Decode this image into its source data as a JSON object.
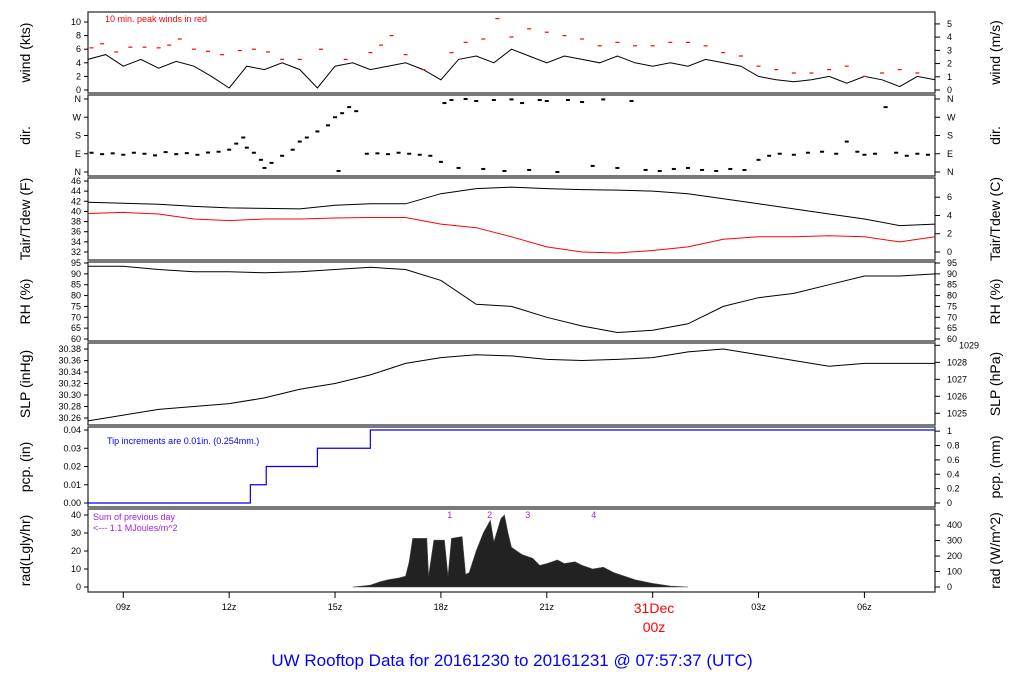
{
  "title": "UW Rooftop Data for 20161230  to  20161231 @ 07:57:37  (UTC)",
  "colors": {
    "black": "#000000",
    "red": "#ff0000",
    "blue": "#0000ff",
    "purple": "#a020f0",
    "title": "#0000ff"
  },
  "chart_data": {
    "type": "line",
    "x_unit": "hours since 2016-12-30 00z",
    "xlim": [
      8,
      32
    ],
    "x_ticks": [
      {
        "h": 9,
        "label": "09z"
      },
      {
        "h": 12,
        "label": "12z"
      },
      {
        "h": 15,
        "label": "15z"
      },
      {
        "h": 18,
        "label": "18z"
      },
      {
        "h": 21,
        "label": "21z"
      },
      {
        "h": 24,
        "label": ""
      },
      {
        "h": 27,
        "label": "03z"
      },
      {
        "h": 30,
        "label": "06z"
      }
    ],
    "date_marker": {
      "date": "31Dec",
      "hour": "00z"
    },
    "panels": {
      "wind": {
        "ylabel": "wind (kts)",
        "ylabel_right": "wind (m/s)",
        "ticks": [
          "0",
          "2",
          "4",
          "6",
          "8",
          "10"
        ],
        "ticks_right": [
          "0",
          "1",
          "2",
          "3",
          "4",
          "5"
        ],
        "annotation": "10 min. peak winds in red",
        "x_start": 8,
        "x_step": 0.5,
        "values": [
          4.5,
          5.2,
          3.5,
          4.5,
          3.2,
          4.2,
          3.5,
          2,
          0.3,
          3.5,
          3,
          4,
          3,
          0.3,
          3.5,
          4,
          3,
          3.5,
          4,
          3,
          1.5,
          4.5,
          5,
          4,
          6,
          5,
          4,
          5,
          4.5,
          4,
          5,
          4,
          3.5,
          4,
          3.5,
          4.5,
          4,
          3.5,
          2,
          1.5,
          1.2,
          1.5,
          2,
          1,
          2,
          1.5,
          0.5,
          2,
          1.5
        ],
        "peaks": [
          [
            8.1,
            6.2
          ],
          [
            8.4,
            6.8
          ],
          [
            8.8,
            5.6
          ],
          [
            9.2,
            6.3
          ],
          [
            9.6,
            6.3
          ],
          [
            10,
            6.2
          ],
          [
            10.3,
            6.6
          ],
          [
            10.6,
            7.5
          ],
          [
            11,
            6
          ],
          [
            11.4,
            5.7
          ],
          [
            11.8,
            5.2
          ],
          [
            12.3,
            5.8
          ],
          [
            12.7,
            6
          ],
          [
            13.1,
            5.6
          ],
          [
            13.5,
            4.5
          ],
          [
            14,
            4.5
          ],
          [
            14.6,
            6
          ],
          [
            15.3,
            4.5
          ],
          [
            16,
            5.5
          ],
          [
            16.3,
            6.6
          ],
          [
            16.6,
            8
          ],
          [
            17,
            5.2
          ],
          [
            17.5,
            3
          ],
          [
            18.3,
            5.5
          ],
          [
            18.7,
            7
          ],
          [
            19.2,
            7.5
          ],
          [
            19.6,
            10.5
          ],
          [
            20,
            7.8
          ],
          [
            20.5,
            9
          ],
          [
            21,
            8.5
          ],
          [
            21.5,
            8
          ],
          [
            22,
            7.5
          ],
          [
            22.5,
            6.5
          ],
          [
            23,
            7
          ],
          [
            23.5,
            6.5
          ],
          [
            24,
            6.5
          ],
          [
            24.5,
            7
          ],
          [
            25,
            7
          ],
          [
            25.5,
            6.5
          ],
          [
            26,
            5.5
          ],
          [
            26.5,
            5
          ],
          [
            27,
            3.5
          ],
          [
            27.5,
            3
          ],
          [
            28,
            2.5
          ],
          [
            28.5,
            2.5
          ],
          [
            29,
            3
          ],
          [
            29.5,
            3.5
          ],
          [
            30,
            2
          ],
          [
            30.5,
            2.5
          ],
          [
            31,
            3
          ],
          [
            31.5,
            2.5
          ]
        ]
      },
      "dir": {
        "ylabel": "dir.",
        "ylabel_right": "dir.",
        "ticks": [
          "N",
          "E",
          "S",
          "W",
          "N"
        ],
        "points": [
          [
            8.1,
            95
          ],
          [
            8.4,
            88
          ],
          [
            8.7,
            92
          ],
          [
            9,
            85
          ],
          [
            9.3,
            95
          ],
          [
            9.6,
            90
          ],
          [
            9.9,
            82
          ],
          [
            10.2,
            98
          ],
          [
            10.5,
            88
          ],
          [
            10.8,
            93
          ],
          [
            11.1,
            85
          ],
          [
            11.4,
            96
          ],
          [
            11.7,
            100
          ],
          [
            12,
            110
          ],
          [
            12.2,
            140
          ],
          [
            12.4,
            170
          ],
          [
            12.5,
            120
          ],
          [
            12.7,
            95
          ],
          [
            12.9,
            60
          ],
          [
            13.0,
            20
          ],
          [
            13.2,
            45
          ],
          [
            13.5,
            80
          ],
          [
            13.8,
            110
          ],
          [
            14.0,
            150
          ],
          [
            14.2,
            170
          ],
          [
            14.5,
            200
          ],
          [
            14.8,
            230
          ],
          [
            15.0,
            270
          ],
          [
            15.2,
            290
          ],
          [
            15.4,
            320
          ],
          [
            15.6,
            300
          ],
          [
            15.1,
            5
          ],
          [
            15.9,
            90
          ],
          [
            16.2,
            92
          ],
          [
            16.5,
            88
          ],
          [
            16.8,
            95
          ],
          [
            17.1,
            90
          ],
          [
            17.4,
            85
          ],
          [
            17.7,
            80
          ],
          [
            18,
            50
          ],
          [
            18.1,
            340
          ],
          [
            18.3,
            355
          ],
          [
            18.5,
            20
          ],
          [
            18.7,
            360
          ],
          [
            19,
            350
          ],
          [
            19.2,
            15
          ],
          [
            19.5,
            355
          ],
          [
            19.8,
            5
          ],
          [
            20,
            358
          ],
          [
            20.3,
            340
          ],
          [
            20.5,
            10
          ],
          [
            20.8,
            355
          ],
          [
            21,
            350
          ],
          [
            21.3,
            0
          ],
          [
            21.6,
            355
          ],
          [
            22,
            345
          ],
          [
            22.3,
            30
          ],
          [
            22.6,
            358
          ],
          [
            23,
            20
          ],
          [
            23.4,
            350
          ],
          [
            23.8,
            10
          ],
          [
            24.2,
            5
          ],
          [
            24.6,
            15
          ],
          [
            25,
            20
          ],
          [
            25.4,
            10
          ],
          [
            25.8,
            5
          ],
          [
            26.2,
            15
          ],
          [
            26.6,
            10
          ],
          [
            27,
            60
          ],
          [
            27.3,
            80
          ],
          [
            27.6,
            90
          ],
          [
            28,
            85
          ],
          [
            28.4,
            95
          ],
          [
            28.8,
            100
          ],
          [
            29.2,
            90
          ],
          [
            29.5,
            150
          ],
          [
            29.8,
            100
          ],
          [
            30,
            85
          ],
          [
            30.3,
            90
          ],
          [
            30.6,
            320
          ],
          [
            30.9,
            95
          ],
          [
            31.2,
            80
          ],
          [
            31.5,
            90
          ],
          [
            31.8,
            85
          ]
        ]
      },
      "temp": {
        "ylabel": "Tair/Tdew (F)",
        "ylabel_right": "Tair/Tdew (C)",
        "ticks": [
          "32",
          "34",
          "36",
          "38",
          "40",
          "42",
          "44",
          "46"
        ],
        "ticks_right": [
          "0",
          "2",
          "4",
          "6"
        ],
        "x_start": 8,
        "x_step": 1,
        "tair": [
          41.8,
          41.6,
          41.4,
          41,
          40.7,
          40.6,
          40.5,
          41.2,
          41.5,
          41.5,
          43.5,
          44.5,
          44.8,
          44.5,
          44.3,
          44.2,
          44,
          43.5,
          42.5,
          41.5,
          40.5,
          39.5,
          38.5,
          37.2,
          37.5
        ],
        "tdew": [
          39.6,
          39.8,
          39.5,
          38.5,
          38.2,
          38.5,
          38.5,
          38.7,
          38.8,
          38.8,
          37.5,
          36.8,
          35,
          33,
          32,
          31.8,
          32.3,
          33,
          34.5,
          35,
          35,
          35.2,
          35,
          34,
          35
        ]
      },
      "rh": {
        "ylabel": "RH (%)",
        "ylabel_right": "RH (%)",
        "ticks": [
          "60",
          "65",
          "70",
          "75",
          "80",
          "85",
          "90",
          "95"
        ],
        "x_start": 8,
        "x_step": 1,
        "values": [
          93.5,
          93.5,
          92,
          91,
          91,
          90.5,
          91,
          92,
          93,
          92,
          87,
          76,
          75,
          70,
          66,
          63,
          64,
          67,
          75,
          79,
          81,
          85,
          89,
          89,
          90
        ]
      },
      "slp": {
        "ylabel": "SLP (inHg)",
        "ylabel_right": "SLP (hPa)",
        "ticks": [
          "30.26",
          "30.28",
          "30.30",
          "30.32",
          "30.34",
          "30.36",
          "30.38"
        ],
        "ticks_right": [
          "1025",
          "1026",
          "1027",
          "1028",
          "1029"
        ],
        "x_start": 8,
        "x_step": 1,
        "values": [
          30.255,
          30.265,
          30.275,
          30.28,
          30.285,
          30.295,
          30.31,
          30.32,
          30.335,
          30.355,
          30.365,
          30.37,
          30.368,
          30.362,
          30.36,
          30.362,
          30.365,
          30.375,
          30.38,
          30.37,
          30.36,
          30.35,
          30.355,
          30.355,
          30.355
        ]
      },
      "pcp": {
        "ylabel": "pcp. (in)",
        "ylabel_right": "pcp. (mm)",
        "ticks": [
          "0.00",
          "0.01",
          "0.02",
          "0.03",
          "0.04"
        ],
        "ticks_right": [
          "0",
          "0.2",
          "0.4",
          "0.6",
          "0.8",
          "1"
        ],
        "annotation": "Tip increments are 0.01in. (0.254mm.)",
        "steps": [
          [
            8,
            0
          ],
          [
            12.6,
            0.01
          ],
          [
            13.05,
            0.02
          ],
          [
            14.5,
            0.03
          ],
          [
            16.0,
            0.04
          ],
          [
            32,
            0.04
          ]
        ]
      },
      "rad": {
        "ylabel": "rad(Lgly/hr)",
        "ylabel_right": "rad (W/m^2)",
        "ticks": [
          "0",
          "10",
          "20",
          "30",
          "40"
        ],
        "ticks_right": [
          "0",
          "100",
          "200",
          "300",
          "400"
        ],
        "annotation_1": "Sum of previous day",
        "annotation_2": "<--- 1.1 MJoules/m^2",
        "markers": [
          {
            "h": 18.25,
            "label": "1"
          },
          {
            "h": 19.38,
            "label": "2"
          },
          {
            "h": 20.46,
            "label": "3"
          },
          {
            "h": 22.33,
            "label": "4"
          }
        ],
        "points": [
          [
            15.5,
            0
          ],
          [
            16,
            1
          ],
          [
            16.3,
            3
          ],
          [
            16.5,
            4
          ],
          [
            16.8,
            5
          ],
          [
            17,
            6
          ],
          [
            17.1,
            14
          ],
          [
            17.2,
            27
          ],
          [
            17.6,
            27
          ],
          [
            17.65,
            6
          ],
          [
            17.8,
            26
          ],
          [
            18.1,
            26
          ],
          [
            18.2,
            6
          ],
          [
            18.3,
            27
          ],
          [
            18.6,
            28
          ],
          [
            18.7,
            7
          ],
          [
            18.8,
            8
          ],
          [
            19,
            20
          ],
          [
            19.2,
            30
          ],
          [
            19.4,
            37
          ],
          [
            19.5,
            25
          ],
          [
            19.7,
            38
          ],
          [
            19.8,
            40
          ],
          [
            19.9,
            30
          ],
          [
            20,
            22
          ],
          [
            20.3,
            18
          ],
          [
            20.6,
            16
          ],
          [
            20.8,
            12
          ],
          [
            21,
            13
          ],
          [
            21.3,
            15
          ],
          [
            21.5,
            13
          ],
          [
            21.8,
            14
          ],
          [
            22,
            12
          ],
          [
            22.3,
            10
          ],
          [
            22.6,
            11
          ],
          [
            22.9,
            8
          ],
          [
            23.2,
            6
          ],
          [
            23.5,
            4
          ],
          [
            24,
            2
          ],
          [
            24.5,
            0.5
          ],
          [
            25,
            0
          ]
        ]
      }
    }
  }
}
